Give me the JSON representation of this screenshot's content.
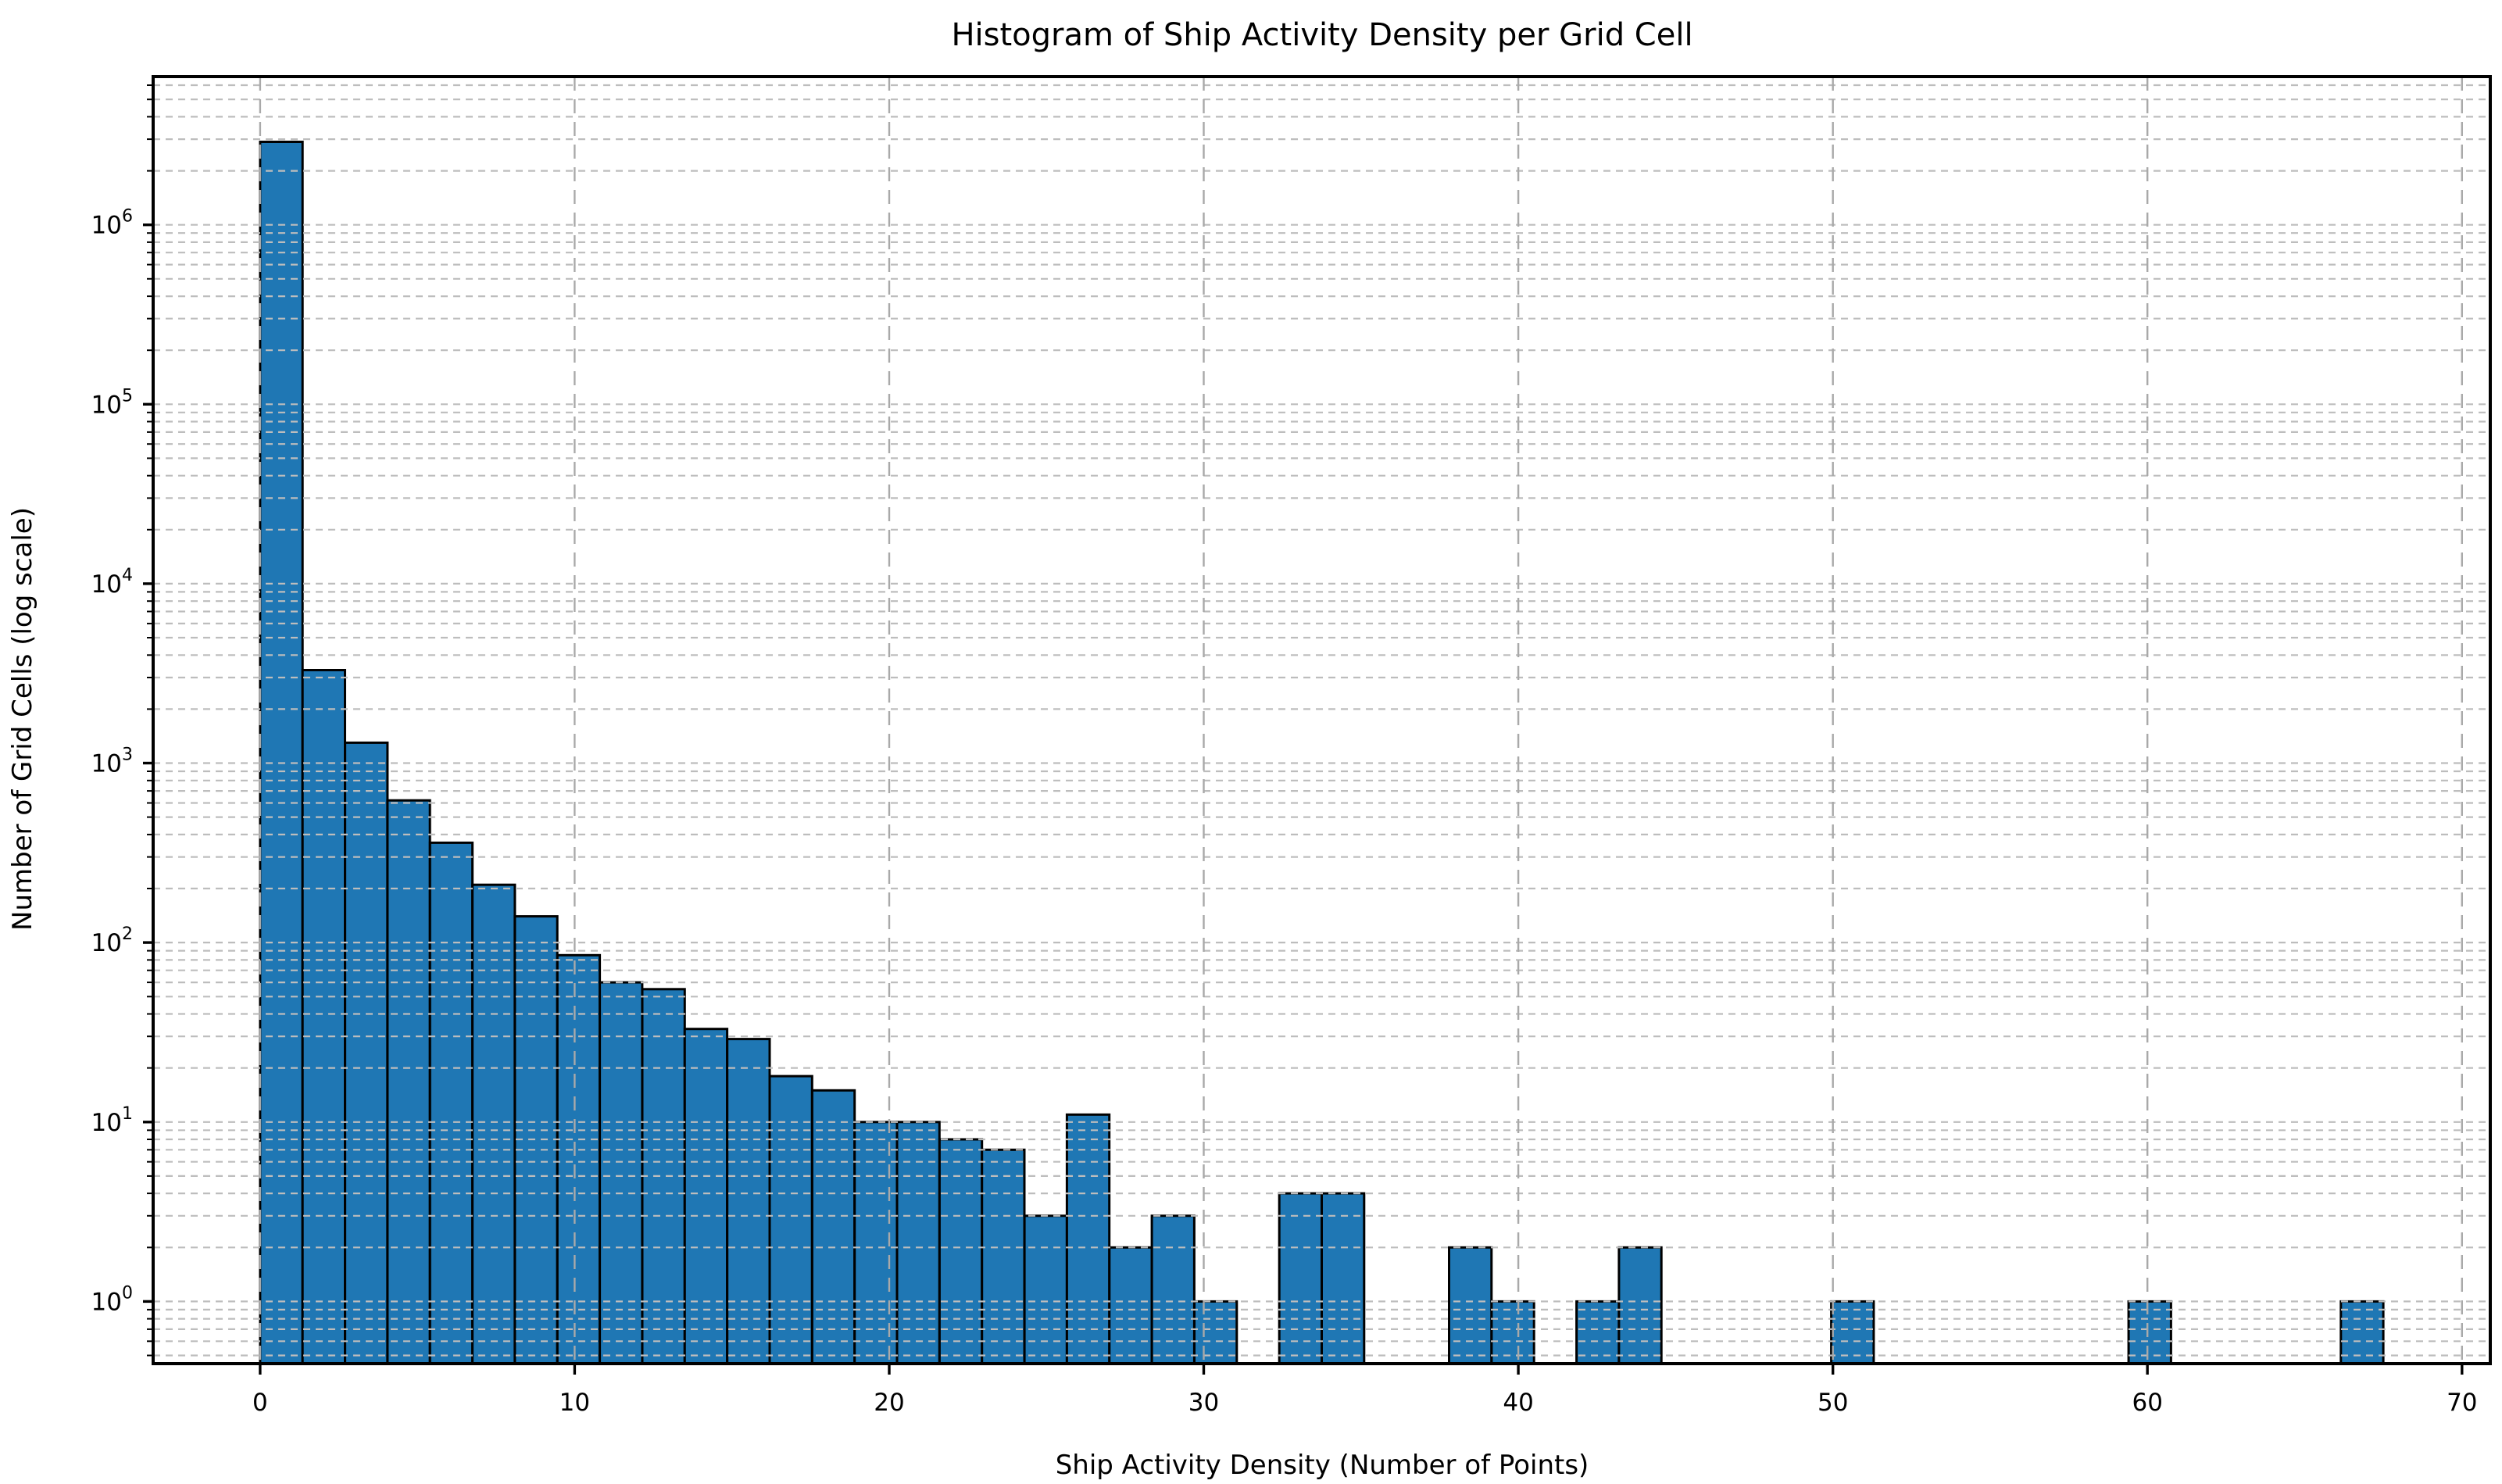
{
  "chart_data": {
    "type": "bar",
    "subtype": "histogram",
    "title": "Histogram of Ship Activity Density per Grid Cell",
    "xlabel": "Ship Activity Density (Number of Points)",
    "ylabel": "Number of Grid Cells (log scale)",
    "x_axis": {
      "ticks": [
        0,
        10,
        20,
        30,
        40,
        50,
        60,
        70
      ],
      "lim": [
        -3.4,
        70.9
      ]
    },
    "y_axis": {
      "scale": "log",
      "tick_exponents": [
        0,
        1,
        2,
        3,
        4,
        5,
        6
      ],
      "tick_format": "10^exp",
      "lim": [
        0.45,
        6700000
      ],
      "minor_gridlines": true
    },
    "grid": "both, dashed, drawn above bars",
    "legend": "none",
    "bin_width": 1.35,
    "bin_range": [
      0,
      67.5
    ],
    "bars": [
      {
        "x": 0.0,
        "count": 2900000
      },
      {
        "x": 1.35,
        "count": 3300
      },
      {
        "x": 2.7,
        "count": 1300
      },
      {
        "x": 4.05,
        "count": 620
      },
      {
        "x": 5.4,
        "count": 360
      },
      {
        "x": 6.75,
        "count": 210
      },
      {
        "x": 8.1,
        "count": 140
      },
      {
        "x": 9.45,
        "count": 85
      },
      {
        "x": 10.8,
        "count": 60
      },
      {
        "x": 12.15,
        "count": 55
      },
      {
        "x": 13.5,
        "count": 33
      },
      {
        "x": 14.85,
        "count": 29
      },
      {
        "x": 16.2,
        "count": 18
      },
      {
        "x": 17.55,
        "count": 15
      },
      {
        "x": 18.9,
        "count": 10
      },
      {
        "x": 20.25,
        "count": 10
      },
      {
        "x": 21.6,
        "count": 8
      },
      {
        "x": 22.95,
        "count": 7
      },
      {
        "x": 24.3,
        "count": 3
      },
      {
        "x": 25.65,
        "count": 11
      },
      {
        "x": 27.0,
        "count": 2
      },
      {
        "x": 28.35,
        "count": 3
      },
      {
        "x": 29.7,
        "count": 1
      },
      {
        "x": 32.4,
        "count": 4
      },
      {
        "x": 33.75,
        "count": 4
      },
      {
        "x": 37.8,
        "count": 2
      },
      {
        "x": 39.15,
        "count": 1
      },
      {
        "x": 41.85,
        "count": 1
      },
      {
        "x": 43.2,
        "count": 2
      },
      {
        "x": 49.95,
        "count": 1
      },
      {
        "x": 59.4,
        "count": 1
      },
      {
        "x": 66.15,
        "count": 1
      }
    ],
    "colors": {
      "bar_fill": "#1f77b4",
      "bar_edge": "#000000",
      "grid_horizontal": "#bdbdbd",
      "grid_vertical": "#a9a9a9",
      "spine": "#000000",
      "text": "#000000",
      "background": "#ffffff"
    }
  }
}
